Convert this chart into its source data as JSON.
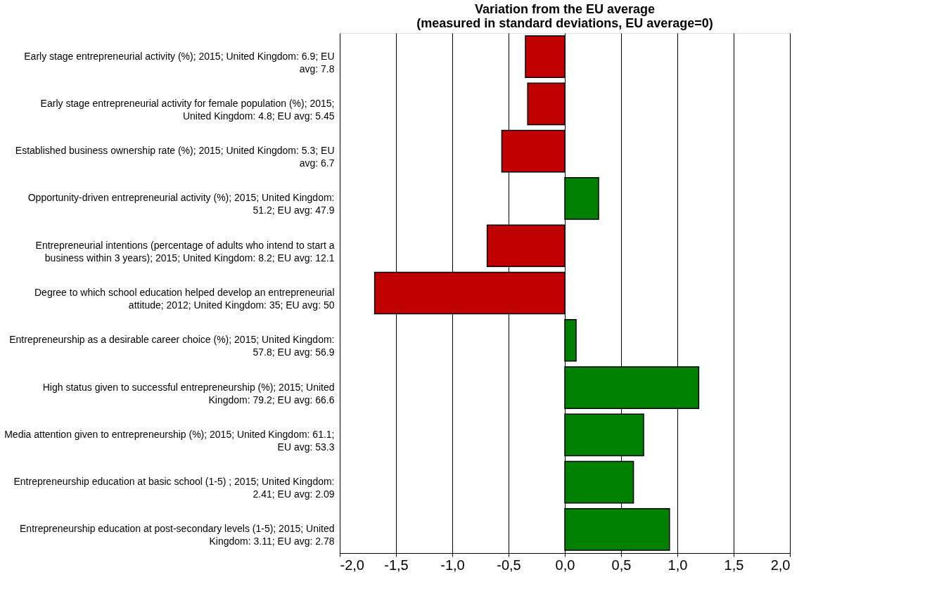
{
  "chart_data": {
    "type": "bar",
    "orientation": "horizontal",
    "title": "Variation from the EU average\n(measured in standard deviations, EU average=0)",
    "categories": [
      "Early stage entrepreneurial activity (%); 2015; United Kingdom: 6.9; EU avg: 7.8",
      "Early stage entrepreneurial activity for female population (%); 2015; United Kingdom: 4.8; EU avg: 5.45",
      "Established business ownership rate (%); 2015; United Kingdom: 5.3; EU avg: 6.7",
      "Opportunity-driven entrepreneurial activity (%); 2015; United Kingdom: 51.2; EU avg: 47.9",
      "Entrepreneurial intentions (percentage of adults who intend to start a business within 3 years); 2015; United Kingdom: 8.2; EU avg: 12.1",
      "Degree to which school education helped develop an entrepreneurial attitude; 2012; United Kingdom: 35; EU avg: 50",
      "Entrepreneurship as a desirable career choice (%); 2015; United Kingdom: 57.8; EU avg: 56.9",
      "High status given to successful entrepreneurship (%); 2015; United Kingdom: 79.2; EU avg: 66.6",
      "Media attention given to entrepreneurship (%); 2015; United Kingdom: 61.1; EU avg: 53.3",
      "Entrepreneurship education at basic school (1-5) ; 2015; United Kingdom: 2.41; EU avg: 2.09",
      "Entrepreneurship education at post-secondary levels (1-5); 2015; United Kingdom: 3.11; EU avg: 2.78"
    ],
    "values": [
      -0.35,
      -0.33,
      -0.56,
      0.3,
      -0.69,
      -1.69,
      0.1,
      1.19,
      0.7,
      0.61,
      0.93
    ],
    "colors": [
      "#c00000",
      "#c00000",
      "#c00000",
      "#008000",
      "#c00000",
      "#c00000",
      "#008000",
      "#008000",
      "#008000",
      "#008000",
      "#008000"
    ],
    "xlim": [
      -2.0,
      2.0
    ],
    "xticks": [
      {
        "value": -2.0,
        "label": "-2,0"
      },
      {
        "value": -1.5,
        "label": "-1,5"
      },
      {
        "value": -1.0,
        "label": "-1,0"
      },
      {
        "value": -0.5,
        "label": "-0,5"
      },
      {
        "value": 0,
        "label": "0,0"
      },
      {
        "value": 0.5,
        "label": "0,5"
      },
      {
        "value": 1.0,
        "label": "1,0"
      },
      {
        "value": 1.5,
        "label": "1,5"
      },
      {
        "value": 2.0,
        "label": "2,0"
      }
    ],
    "grid": "x"
  }
}
